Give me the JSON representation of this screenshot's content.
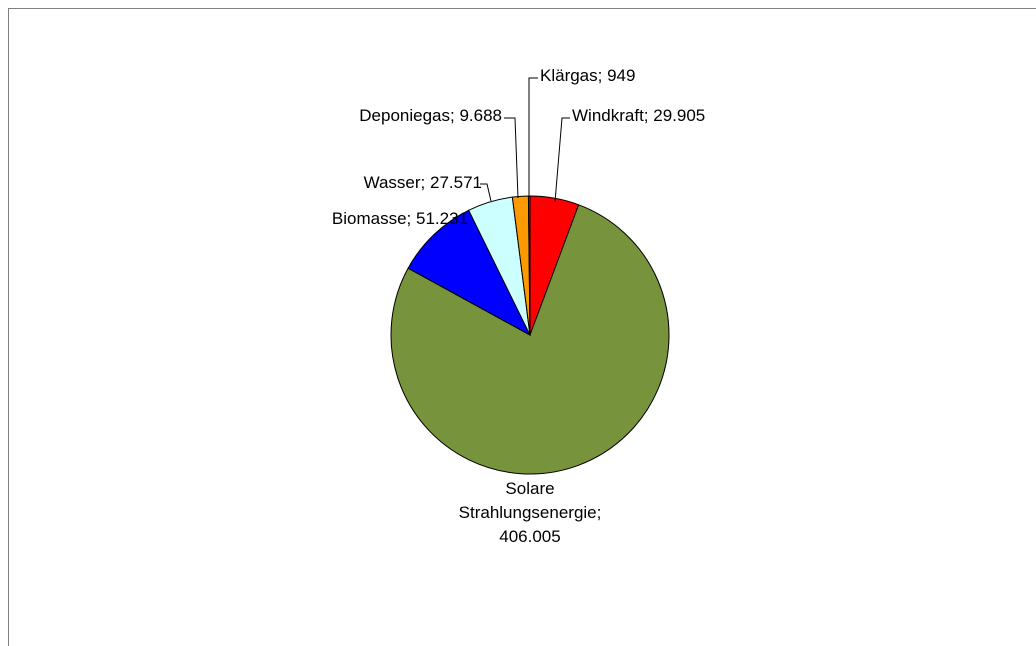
{
  "chart_data": {
    "type": "pie",
    "values": [
      29905,
      406005,
      51231,
      27571,
      9688,
      949
    ],
    "value_labels": [
      "Windkraft; 29.905",
      "Solare\nStrahlungsenergie;\n406.005",
      "Biomasse; 51.231",
      "Wasser; 27.571",
      "Deponiegas; 9.688",
      "Klärgas; 949"
    ],
    "colors": [
      "#ff0000",
      "#77933c",
      "#0000ff",
      "#ccffff",
      "#ff9900",
      "#993366"
    ]
  }
}
